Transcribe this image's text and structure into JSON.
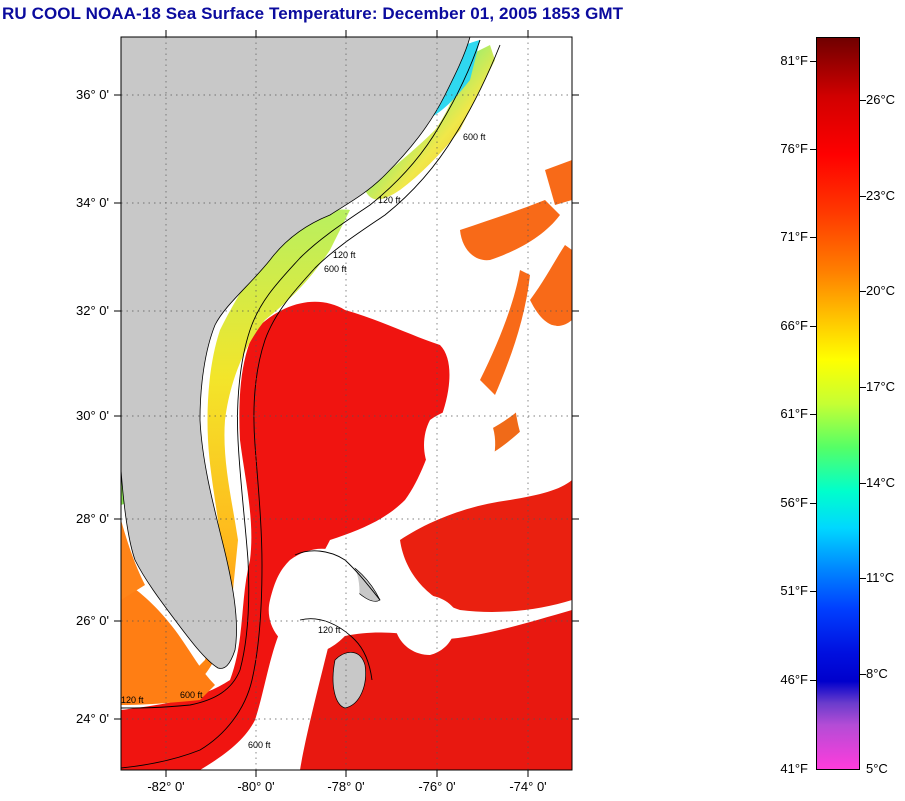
{
  "title": "RU COOL  NOAA-18  Sea Surface Temperature:  December 01, 2005 1853 GMT",
  "map": {
    "lat_labels": [
      "36° 0'",
      "34° 0'",
      "32° 0'",
      "30° 0'",
      "28° 0'",
      "26° 0'",
      "24° 0'"
    ],
    "lon_labels": [
      "-82° 0'",
      "-80° 0'",
      "-78° 0'",
      "-76° 0'",
      "-74° 0'"
    ],
    "isobath_labels": [
      "120 ft",
      "600 ft",
      "120 ft",
      "600 ft",
      "120 ft",
      "120 ft",
      "600 ft",
      "600 ft"
    ],
    "colors": {
      "land": "#c8c8c8",
      "cloud": "#ffffff",
      "gulf_stream": "#f01010",
      "shelf_warm": "#ff7a10",
      "shelf_mid": "#f0e020",
      "coastal_cool": "#2fd2e0"
    }
  },
  "colorbar": {
    "fahrenheit": [
      "81°F",
      "76°F",
      "71°F",
      "66°F",
      "61°F",
      "56°F",
      "51°F",
      "46°F",
      "41°F"
    ],
    "celsius": [
      "26°C",
      "23°C",
      "20°C",
      "17°C",
      "14°C",
      "11°C",
      "8°C",
      "5°C"
    ],
    "range_f": [
      41,
      83
    ],
    "range_c": [
      5,
      28
    ]
  }
}
